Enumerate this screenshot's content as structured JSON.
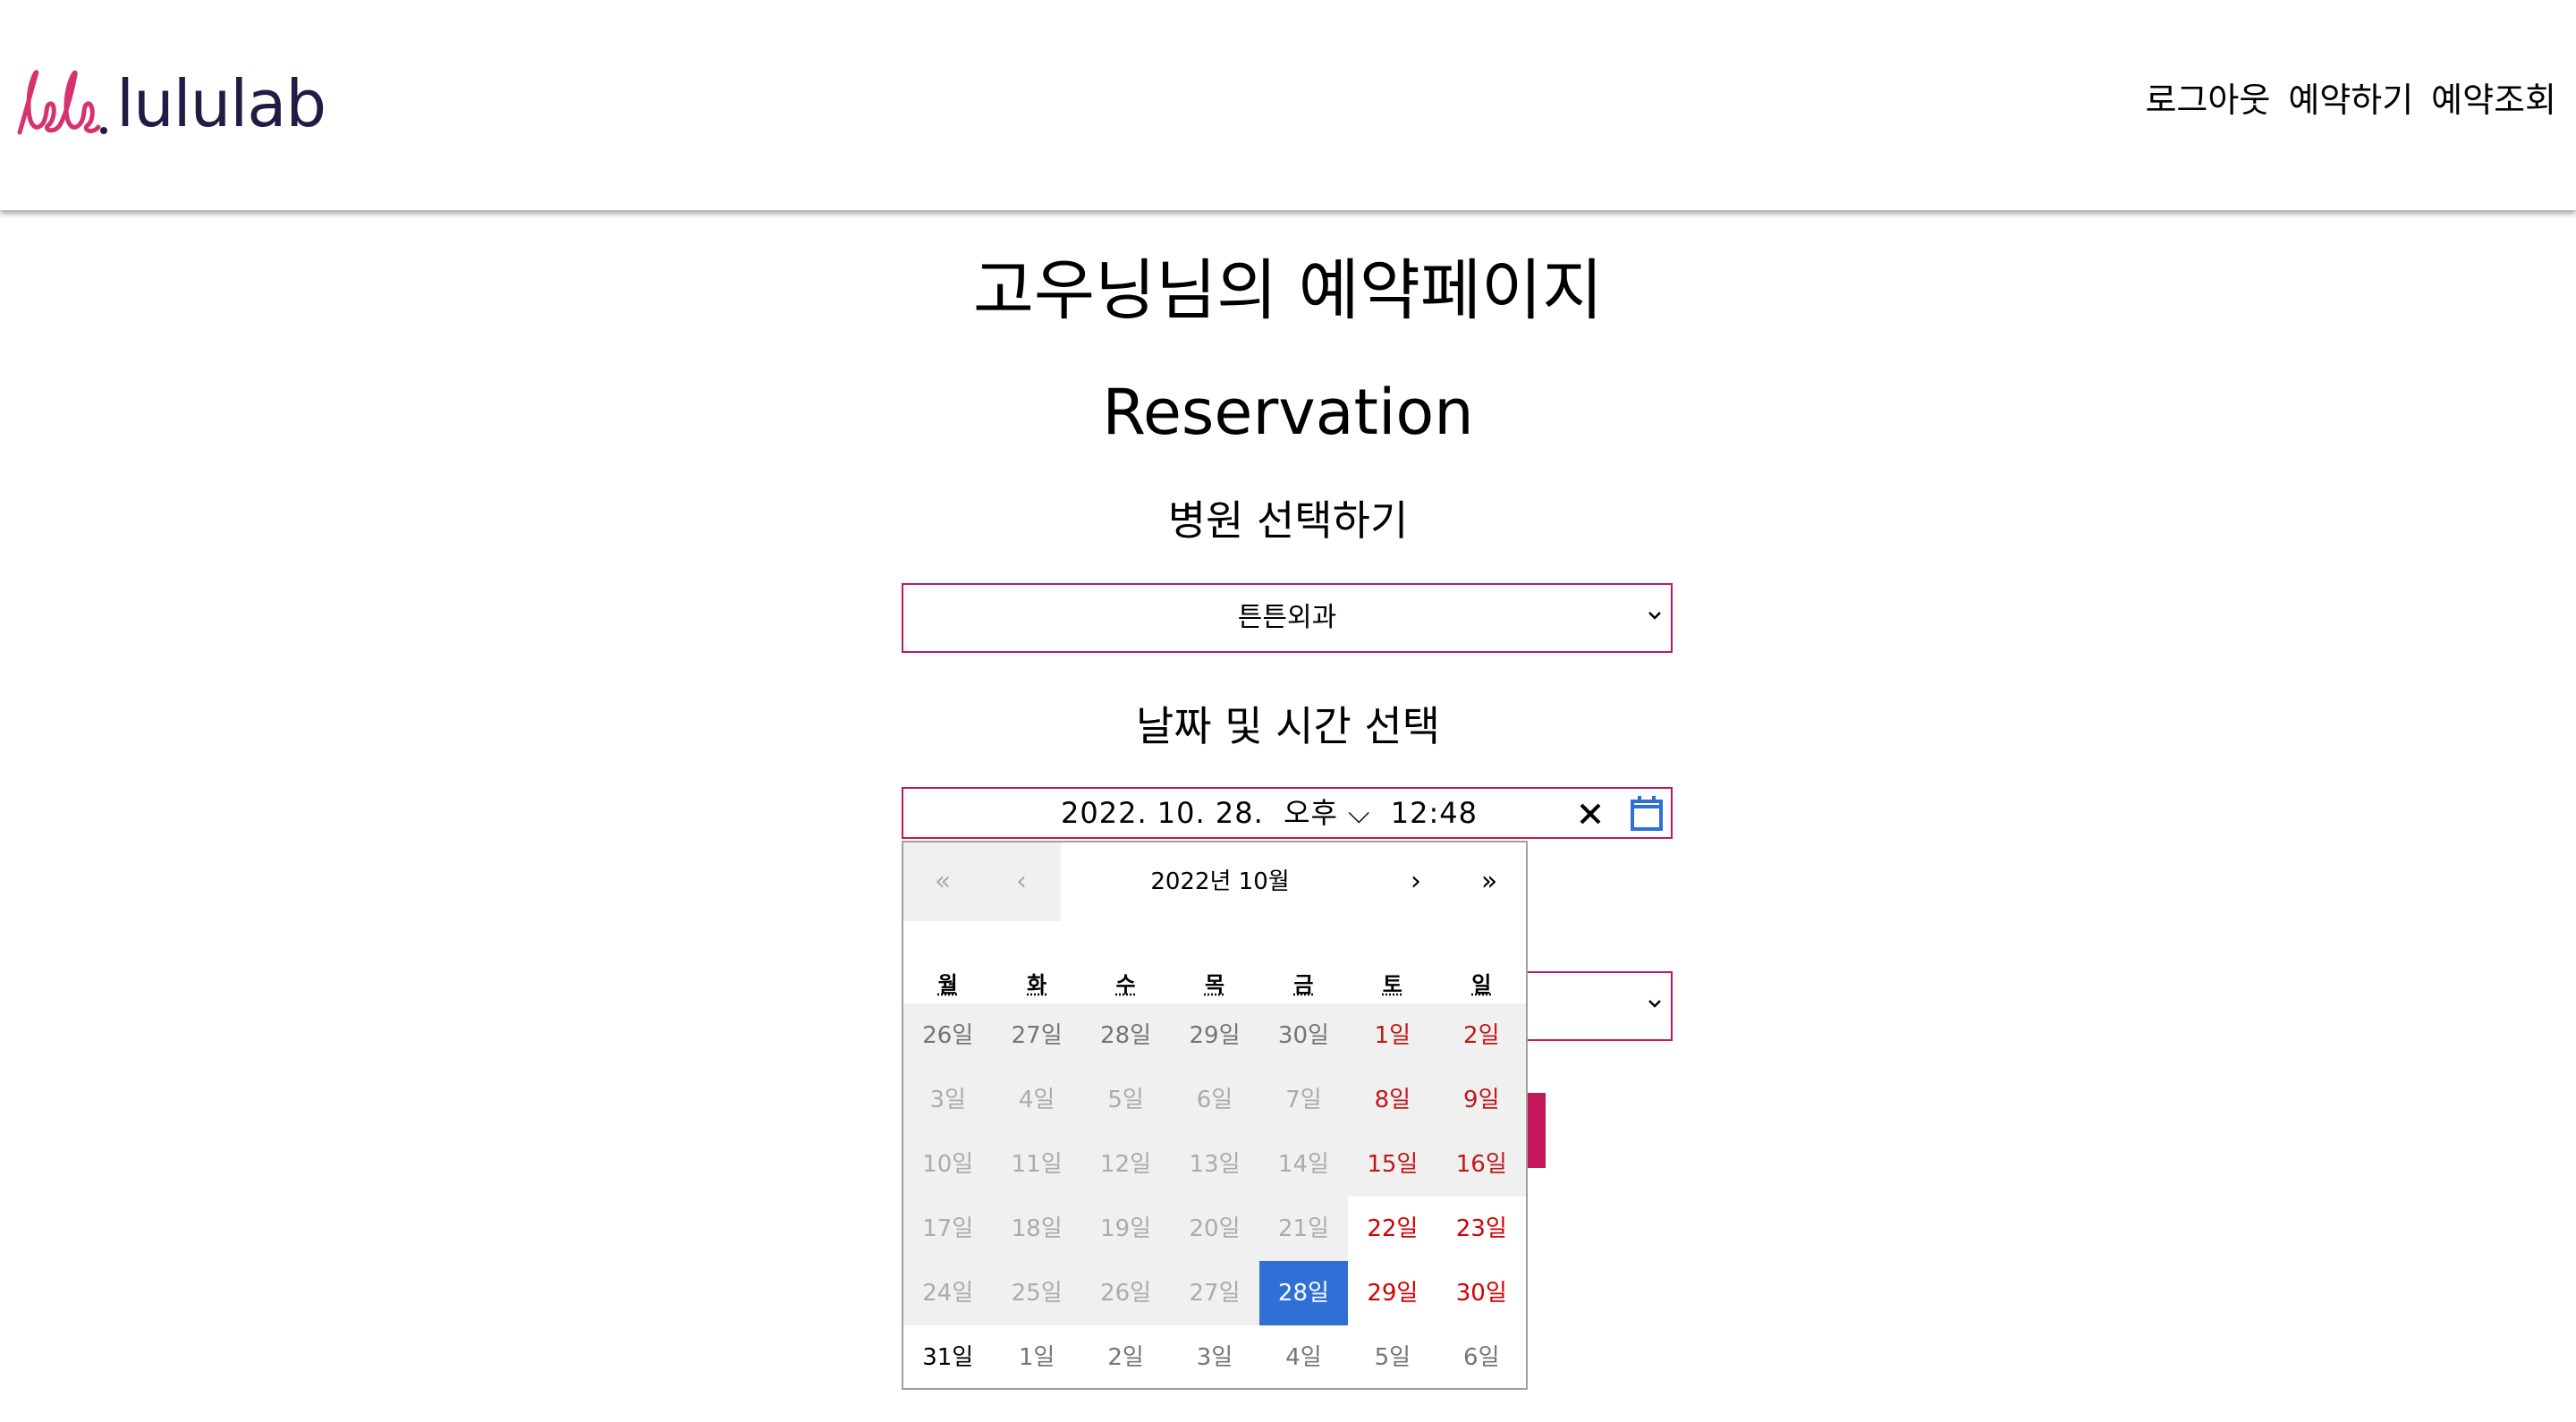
{
  "header": {
    "logo_text": "lululab",
    "logo_mark": "lele",
    "nav": [
      "로그아웃",
      "예약하기",
      "예약조회"
    ]
  },
  "page": {
    "title": "고우닝님의 예약페이지",
    "subtitle": "Reservation",
    "hospital_label": "병원 선택하기",
    "hospital_selected": "튼튼외과",
    "datetime_label": "날짜 및 시간 선택",
    "datetime_value": "2022. 10. 28.  오후 ⌵  12:48"
  },
  "calendar": {
    "month_label": "2022년 10월",
    "nav": {
      "first": "«",
      "prev": "‹",
      "next": "›",
      "last": "»"
    },
    "weekdays": [
      "월",
      "화",
      "수",
      "목",
      "금",
      "토",
      "일"
    ],
    "days": [
      "26일",
      "27일",
      "28일",
      "29일",
      "30일",
      "1일",
      "2일",
      "3일",
      "4일",
      "5일",
      "6일",
      "7일",
      "8일",
      "9일",
      "10일",
      "11일",
      "12일",
      "13일",
      "14일",
      "15일",
      "16일",
      "17일",
      "18일",
      "19일",
      "20일",
      "21일",
      "22일",
      "23일",
      "24일",
      "25일",
      "26일",
      "27일",
      "28일",
      "29일",
      "30일",
      "31일",
      "1일",
      "2일",
      "3일",
      "4일",
      "5일",
      "6일"
    ],
    "selected_day": "28일"
  },
  "colors": {
    "accent": "#c2185b",
    "selected": "#2f6fd6",
    "weekend": "#d10000",
    "logo_mark": "#d6336c",
    "logo_text": "#1f1d44"
  },
  "icons": [
    "chevron-down-icon",
    "close-icon",
    "calendar-icon"
  ]
}
